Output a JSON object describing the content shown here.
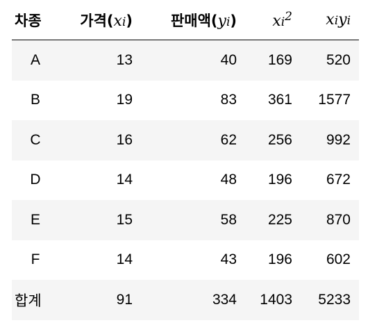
{
  "table": {
    "headers": {
      "car_type": "차종",
      "price_label": "가격",
      "sales_label": "판매액",
      "x_var": "x",
      "y_var": "y",
      "i_sub": "i",
      "sq_col_var": "x",
      "sq_col_sub": "i",
      "sq_col_exp": "2",
      "prod_col_x": "x",
      "prod_col_i1": "i",
      "prod_col_y": "y",
      "prod_col_i2": "i"
    },
    "rows": [
      {
        "label": "A",
        "x": "13",
        "y": "40",
        "x_sq": "169",
        "xy": "520"
      },
      {
        "label": "B",
        "x": "19",
        "y": "83",
        "x_sq": "361",
        "xy": "1577"
      },
      {
        "label": "C",
        "x": "16",
        "y": "62",
        "x_sq": "256",
        "xy": "992"
      },
      {
        "label": "D",
        "x": "14",
        "y": "48",
        "x_sq": "196",
        "xy": "672"
      },
      {
        "label": "E",
        "x": "15",
        "y": "58",
        "x_sq": "225",
        "xy": "870"
      },
      {
        "label": "F",
        "x": "14",
        "y": "43",
        "x_sq": "196",
        "xy": "602"
      }
    ],
    "total": {
      "label": "합계",
      "x": "91",
      "y": "334",
      "x_sq": "1403",
      "xy": "5233"
    }
  }
}
